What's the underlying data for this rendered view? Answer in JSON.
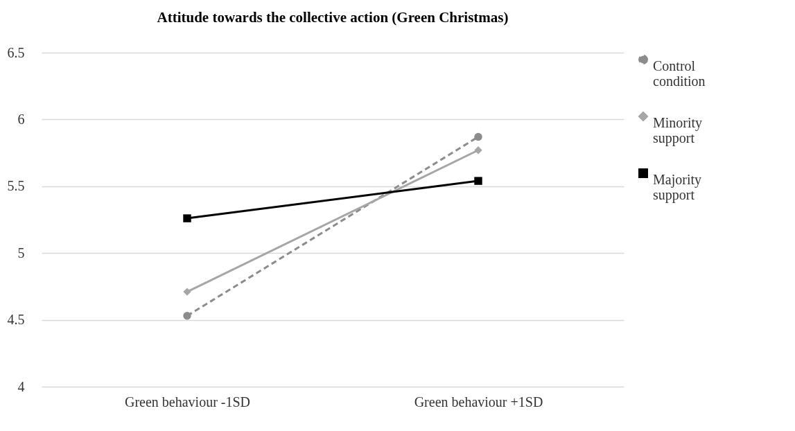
{
  "chart_data": {
    "type": "line",
    "title": "Attitude towards the collective action (Green Christmas)",
    "categories": [
      "Green behaviour -1SD",
      "Green behaviour +1SD"
    ],
    "series": [
      {
        "name": "Control condition",
        "color": "#8c8c8c",
        "values": [
          4.53,
          5.87
        ],
        "marker": "circle",
        "line_style": "dashed"
      },
      {
        "name": "Minority support",
        "color": "#a6a6a6",
        "values": [
          4.71,
          5.77
        ],
        "marker": "diamond",
        "line_style": "solid"
      },
      {
        "name": "Majority support",
        "color": "#000000",
        "values": [
          5.26,
          5.54
        ],
        "marker": "square",
        "line_style": "solid"
      }
    ],
    "ylim": [
      4,
      6.5
    ],
    "yticks": [
      4,
      4.5,
      5,
      5.5,
      6,
      6.5
    ],
    "grid": "y",
    "legend": "right"
  }
}
